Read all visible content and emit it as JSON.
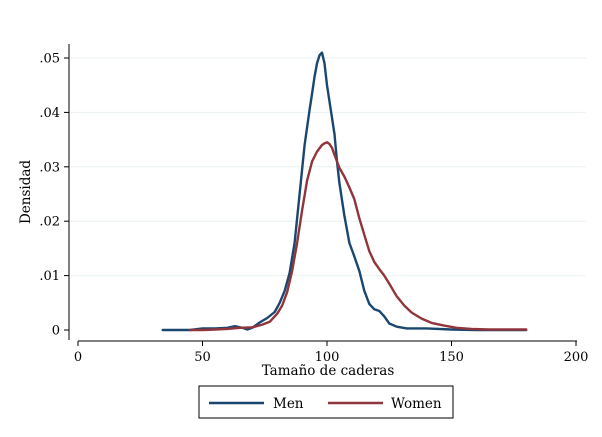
{
  "chart_data": {
    "type": "line",
    "title": "",
    "xlabel": "Tamaño de caderas",
    "ylabel": "Densidad",
    "xlim": [
      0,
      200
    ],
    "ylim": [
      0,
      0.05
    ],
    "grid": true,
    "legend_position": "bottom",
    "x_ticks": [
      {
        "value": 0,
        "label": "0"
      },
      {
        "value": 50,
        "label": "50"
      },
      {
        "value": 100,
        "label": "100"
      },
      {
        "value": 150,
        "label": "150"
      },
      {
        "value": 200,
        "label": "200"
      }
    ],
    "y_ticks": [
      {
        "value": 0,
        "label": "0"
      },
      {
        "value": 0.01,
        "label": ".01"
      },
      {
        "value": 0.02,
        "label": ".02"
      },
      {
        "value": 0.03,
        "label": ".03"
      },
      {
        "value": 0.04,
        "label": ".04"
      },
      {
        "value": 0.05,
        "label": ".05"
      }
    ],
    "series": [
      {
        "name": "Men",
        "color": "#1a476f",
        "x": [
          34,
          40,
          45,
          50,
          55,
          60,
          63,
          66,
          68,
          70,
          73,
          76,
          79,
          81,
          83,
          85,
          87,
          89,
          91,
          93,
          94,
          95,
          96,
          97,
          98,
          99,
          100,
          101,
          102,
          103,
          104,
          105,
          107,
          109,
          111,
          113,
          115,
          117,
          119,
          121,
          123,
          125,
          128,
          132,
          140,
          150,
          160,
          170,
          180
        ],
        "y": [
          0,
          0,
          0,
          0.0003,
          0.0003,
          0.0004,
          0.0007,
          0.0004,
          0.0001,
          0.0004,
          0.0014,
          0.0022,
          0.0033,
          0.005,
          0.0072,
          0.0105,
          0.016,
          0.025,
          0.034,
          0.0405,
          0.0435,
          0.0465,
          0.049,
          0.0505,
          0.051,
          0.049,
          0.045,
          0.042,
          0.039,
          0.036,
          0.031,
          0.027,
          0.021,
          0.016,
          0.0135,
          0.0108,
          0.0072,
          0.0048,
          0.0038,
          0.0035,
          0.0025,
          0.0012,
          0.0006,
          0.0003,
          0.0003,
          0.0001,
          0,
          0,
          0
        ]
      },
      {
        "name": "Women",
        "color": "#90353b",
        "x": [
          45,
          50,
          55,
          60,
          65,
          70,
          74,
          77,
          80,
          82,
          84,
          86,
          88,
          90,
          92,
          94,
          96,
          98,
          99,
          100,
          101,
          102,
          103,
          104,
          105,
          107,
          109,
          111,
          113,
          115,
          117,
          119,
          121,
          123,
          125,
          128,
          131,
          134,
          138,
          142,
          147,
          152,
          158,
          165,
          172,
          180
        ],
        "y": [
          0,
          0,
          0.0001,
          0.0002,
          0.0004,
          0.0005,
          0.001,
          0.0015,
          0.003,
          0.0045,
          0.007,
          0.0108,
          0.016,
          0.022,
          0.0275,
          0.031,
          0.0328,
          0.034,
          0.0343,
          0.0345,
          0.0342,
          0.0335,
          0.0322,
          0.031,
          0.0298,
          0.0282,
          0.0262,
          0.024,
          0.0205,
          0.0175,
          0.0145,
          0.0125,
          0.0112,
          0.01,
          0.0085,
          0.0062,
          0.0045,
          0.0032,
          0.0021,
          0.0013,
          0.0008,
          0.0004,
          0.0002,
          0.0001,
          0.0001,
          0.0001
        ]
      }
    ]
  }
}
